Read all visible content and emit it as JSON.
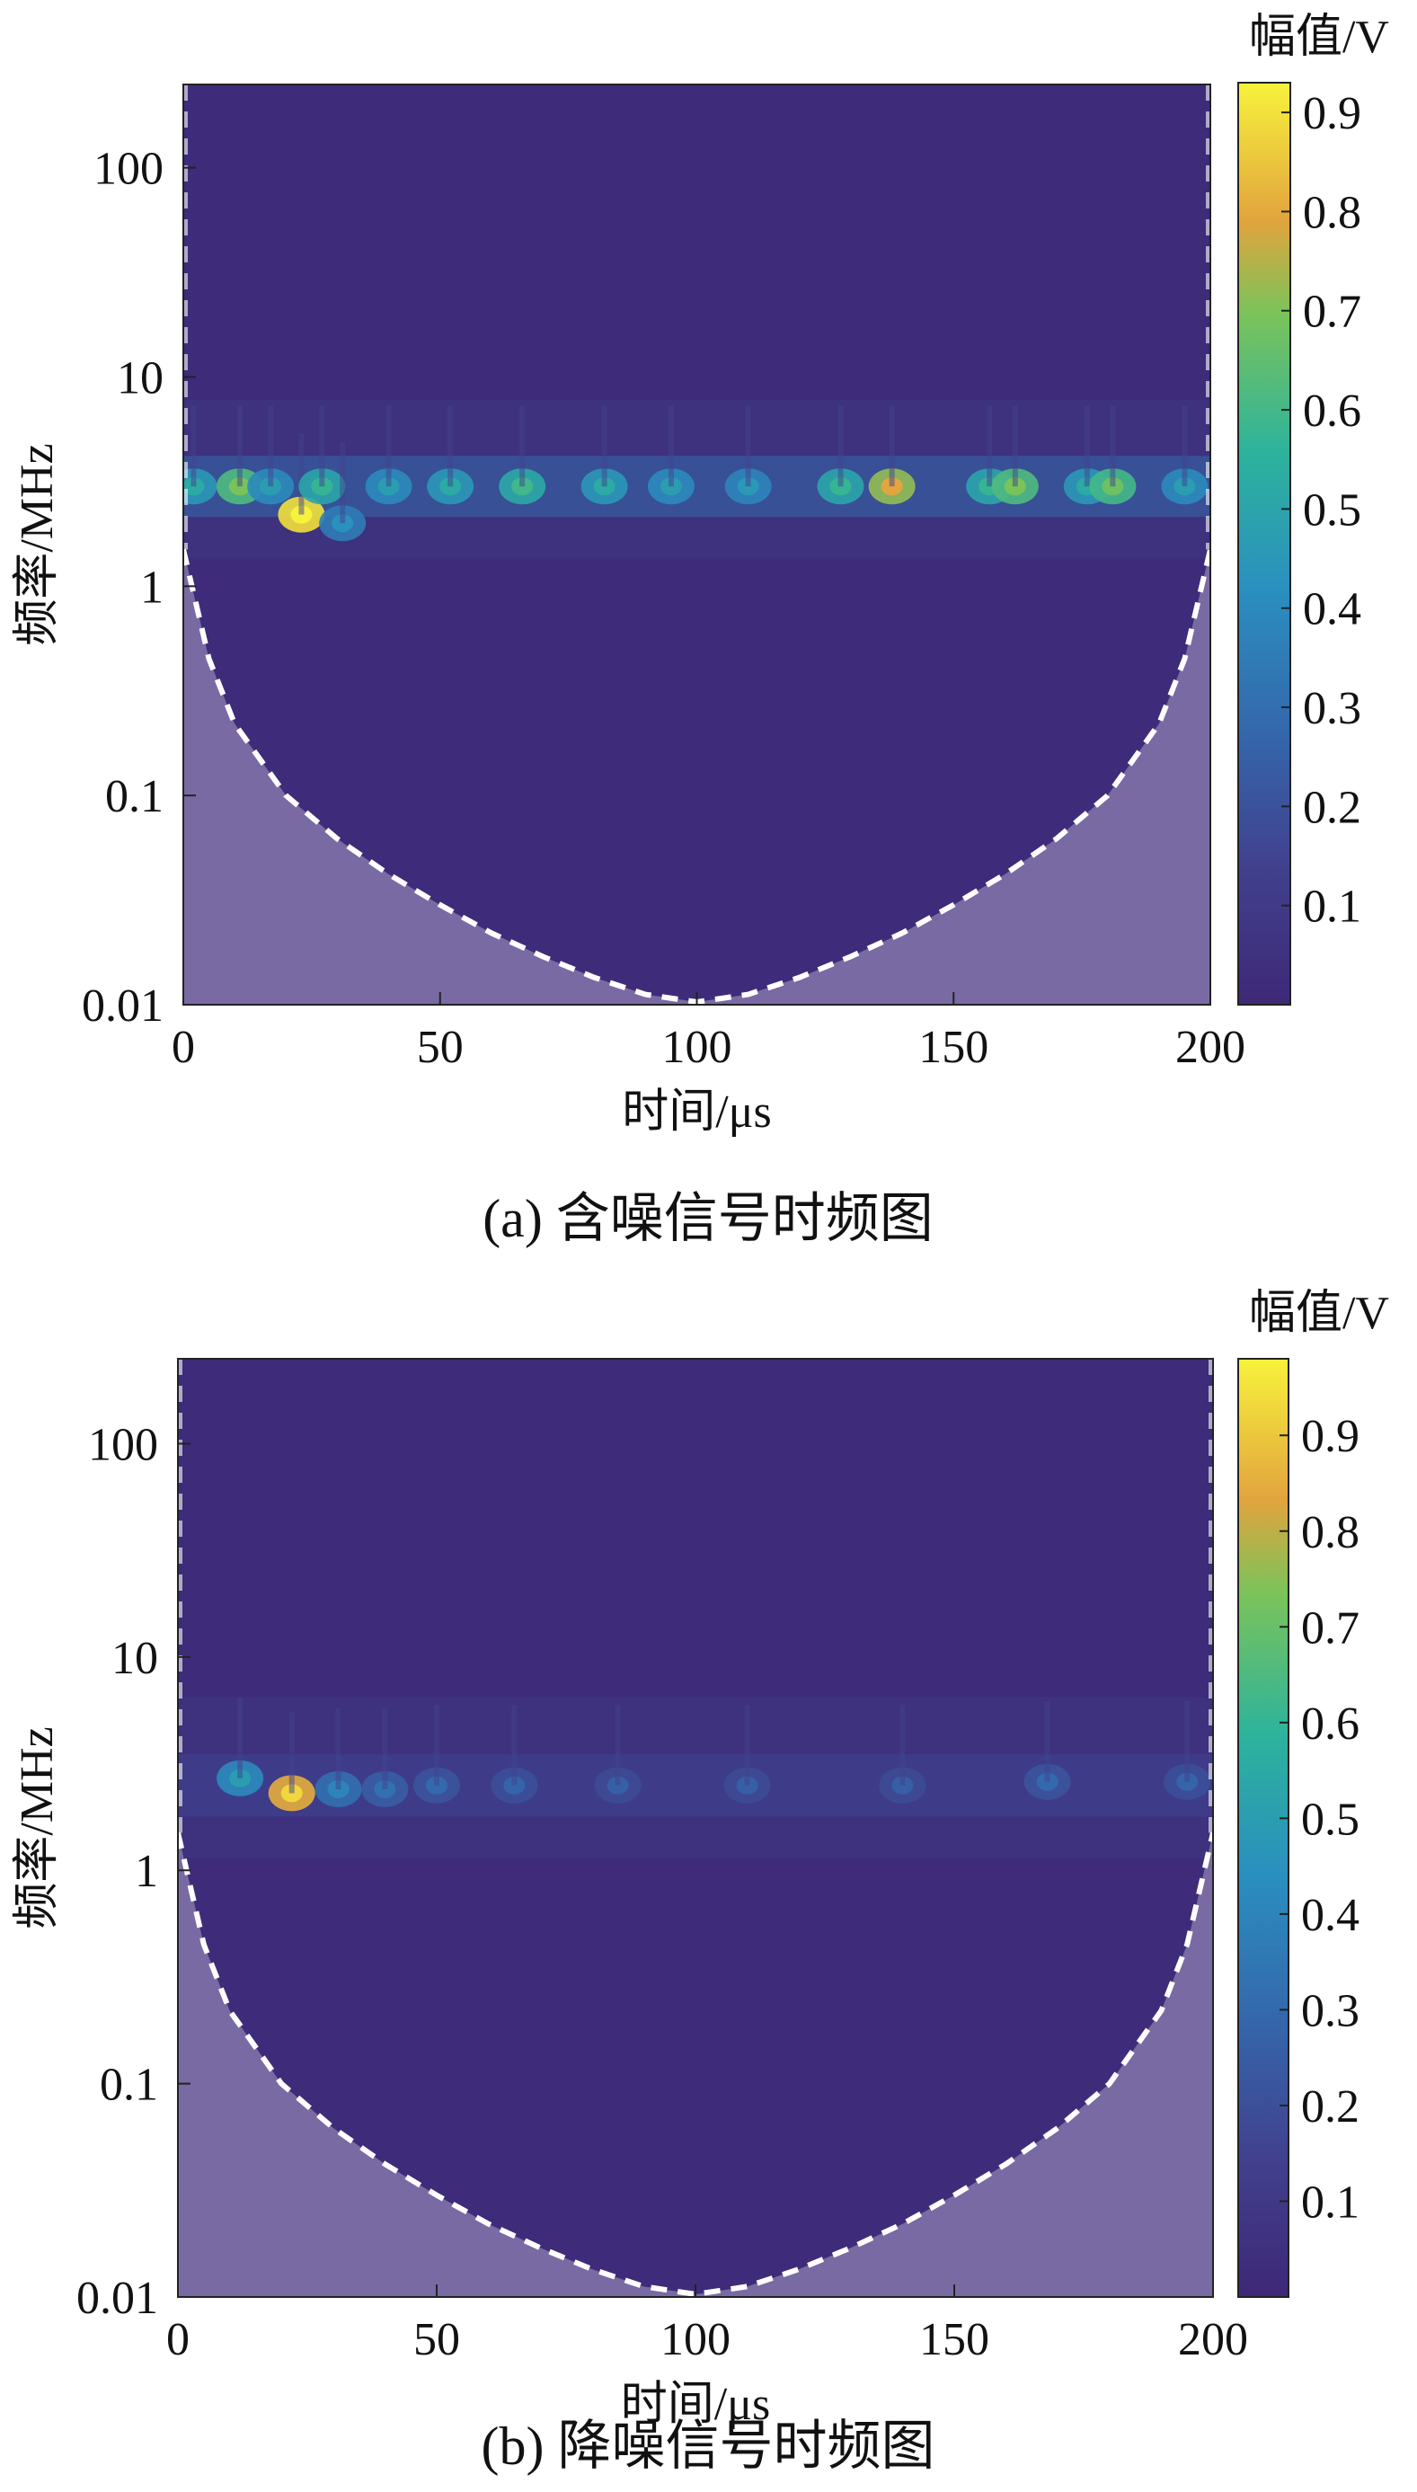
{
  "chart_data": [
    {
      "type": "heatmap",
      "panel": "a",
      "caption": "(a)  含噪信号时频图",
      "xlabel": "时间/μs",
      "ylabel": "频率/MHz",
      "xlim": [
        0,
        200
      ],
      "ylim": [
        0.01,
        250
      ],
      "yscale": "log",
      "x_ticks": [
        0,
        50,
        100,
        150,
        200
      ],
      "y_ticks": [
        {
          "value": 0.01,
          "label": "0.01"
        },
        {
          "value": 0.1,
          "label": "0.1"
        },
        {
          "value": 1,
          "label": "1"
        },
        {
          "value": 10,
          "label": "10"
        },
        {
          "value": 100,
          "label": "100"
        }
      ],
      "colorbar": {
        "title": "幅值/V",
        "min": 0,
        "max": 0.93,
        "ticks": [
          0.1,
          0.2,
          0.3,
          0.4,
          0.5,
          0.6,
          0.7,
          0.8,
          0.9
        ]
      },
      "cone_of_influence": [
        [
          0,
          1.5
        ],
        [
          5,
          0.45
        ],
        [
          10,
          0.22
        ],
        [
          20,
          0.1
        ],
        [
          30,
          0.062
        ],
        [
          40,
          0.042
        ],
        [
          50,
          0.03
        ],
        [
          60,
          0.022
        ],
        [
          70,
          0.017
        ],
        [
          80,
          0.0135
        ],
        [
          90,
          0.0112
        ],
        [
          100,
          0.0103
        ],
        [
          110,
          0.0112
        ],
        [
          120,
          0.0135
        ],
        [
          130,
          0.017
        ],
        [
          140,
          0.022
        ],
        [
          150,
          0.03
        ],
        [
          160,
          0.042
        ],
        [
          170,
          0.062
        ],
        [
          180,
          0.1
        ],
        [
          190,
          0.22
        ],
        [
          195,
          0.45
        ],
        [
          200,
          1.5
        ]
      ],
      "band": {
        "freq": 3.0,
        "strength": 0.38
      },
      "hotspots": [
        {
          "t": 2,
          "f": 3.0,
          "v": 0.45
        },
        {
          "t": 11,
          "f": 3.0,
          "v": 0.62
        },
        {
          "t": 17,
          "f": 3.0,
          "v": 0.4
        },
        {
          "t": 23,
          "f": 2.2,
          "v": 0.9
        },
        {
          "t": 27,
          "f": 3.0,
          "v": 0.5
        },
        {
          "t": 31,
          "f": 2.0,
          "v": 0.35
        },
        {
          "t": 40,
          "f": 3.0,
          "v": 0.4
        },
        {
          "t": 52,
          "f": 3.0,
          "v": 0.45
        },
        {
          "t": 66,
          "f": 3.0,
          "v": 0.52
        },
        {
          "t": 82,
          "f": 3.0,
          "v": 0.45
        },
        {
          "t": 95,
          "f": 3.0,
          "v": 0.4
        },
        {
          "t": 110,
          "f": 3.0,
          "v": 0.38
        },
        {
          "t": 128,
          "f": 3.0,
          "v": 0.5
        },
        {
          "t": 138,
          "f": 3.0,
          "v": 0.72
        },
        {
          "t": 157,
          "f": 3.0,
          "v": 0.5
        },
        {
          "t": 162,
          "f": 3.0,
          "v": 0.62
        },
        {
          "t": 176,
          "f": 3.0,
          "v": 0.45
        },
        {
          "t": 181,
          "f": 3.0,
          "v": 0.6
        },
        {
          "t": 195,
          "f": 3.0,
          "v": 0.4
        }
      ]
    },
    {
      "type": "heatmap",
      "panel": "b",
      "caption": "(b)  降噪信号时频图",
      "xlabel": "时间/μs",
      "ylabel": "频率/MHz",
      "xlim": [
        0,
        200
      ],
      "ylim": [
        0.01,
        250
      ],
      "yscale": "log",
      "x_ticks": [
        0,
        50,
        100,
        150,
        200
      ],
      "y_ticks": [
        {
          "value": 0.01,
          "label": "0.01"
        },
        {
          "value": 0.1,
          "label": "0.1"
        },
        {
          "value": 1,
          "label": "1"
        },
        {
          "value": 10,
          "label": "10"
        },
        {
          "value": 100,
          "label": "100"
        }
      ],
      "colorbar": {
        "title": "幅值/V",
        "min": 0,
        "max": 0.98,
        "ticks": [
          0.1,
          0.2,
          0.3,
          0.4,
          0.5,
          0.6,
          0.7,
          0.8,
          0.9
        ]
      },
      "cone_of_influence": [
        [
          0,
          1.5
        ],
        [
          5,
          0.45
        ],
        [
          10,
          0.22
        ],
        [
          20,
          0.1
        ],
        [
          30,
          0.062
        ],
        [
          40,
          0.042
        ],
        [
          50,
          0.03
        ],
        [
          60,
          0.022
        ],
        [
          70,
          0.017
        ],
        [
          80,
          0.0135
        ],
        [
          90,
          0.0112
        ],
        [
          100,
          0.0103
        ],
        [
          110,
          0.0112
        ],
        [
          120,
          0.0135
        ],
        [
          130,
          0.017
        ],
        [
          140,
          0.022
        ],
        [
          150,
          0.03
        ],
        [
          160,
          0.042
        ],
        [
          170,
          0.062
        ],
        [
          180,
          0.1
        ],
        [
          190,
          0.22
        ],
        [
          195,
          0.45
        ],
        [
          200,
          1.5
        ]
      ],
      "band": {
        "freq": 2.5,
        "strength": 0.18
      },
      "hotspots": [
        {
          "t": 12,
          "f": 2.7,
          "v": 0.42
        },
        {
          "t": 22,
          "f": 2.3,
          "v": 0.85
        },
        {
          "t": 31,
          "f": 2.4,
          "v": 0.32
        },
        {
          "t": 40,
          "f": 2.4,
          "v": 0.25
        },
        {
          "t": 50,
          "f": 2.5,
          "v": 0.22
        },
        {
          "t": 65,
          "f": 2.5,
          "v": 0.2
        },
        {
          "t": 85,
          "f": 2.5,
          "v": 0.18
        },
        {
          "t": 110,
          "f": 2.5,
          "v": 0.18
        },
        {
          "t": 140,
          "f": 2.5,
          "v": 0.18
        },
        {
          "t": 168,
          "f": 2.6,
          "v": 0.22
        },
        {
          "t": 195,
          "f": 2.6,
          "v": 0.2
        }
      ]
    }
  ]
}
